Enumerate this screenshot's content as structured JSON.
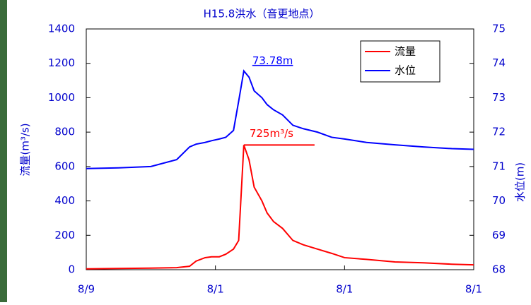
{
  "chart_data": {
    "type": "line",
    "title": "H15.8洪水（音更地点）",
    "ylabel": "流量(m³/s)",
    "y2label": "水位(m)",
    "x": [
      0,
      0.25,
      0.5,
      0.7,
      0.8,
      0.85,
      0.92,
      0.97,
      1.03,
      1.08,
      1.14,
      1.18,
      1.22,
      1.26,
      1.3,
      1.36,
      1.4,
      1.45,
      1.52,
      1.6,
      1.68,
      1.79,
      1.9,
      2.0,
      2.17,
      2.39,
      2.61,
      2.83,
      3.0
    ],
    "xlim": [
      0,
      3
    ],
    "xticks": [
      {
        "value": 0,
        "label": "8/9"
      },
      {
        "value": 1,
        "label": "8/1"
      },
      {
        "value": 2,
        "label": "8/1"
      },
      {
        "value": 3,
        "label": "8/1"
      }
    ],
    "ylim": [
      0,
      1400
    ],
    "yticks": [
      0,
      200,
      400,
      600,
      800,
      1000,
      1200,
      1400
    ],
    "y2lim": [
      68,
      75
    ],
    "y2ticks": [
      68,
      69,
      70,
      71,
      72,
      73,
      74,
      75
    ],
    "series": [
      {
        "name": "流量",
        "color": "#ff0000",
        "values": [
          5,
          7,
          9,
          12,
          20,
          50,
          70,
          75,
          75,
          90,
          120,
          170,
          725,
          640,
          480,
          400,
          330,
          280,
          240,
          170,
          145,
          120,
          95,
          70,
          60,
          45,
          40,
          32,
          28
        ]
      },
      {
        "name": "水位",
        "color": "#0000ff",
        "axis": "y2",
        "values": [
          70.94,
          70.96,
          71.0,
          71.2,
          71.57,
          71.65,
          71.7,
          71.75,
          71.8,
          71.85,
          72.05,
          72.9,
          73.78,
          73.6,
          73.2,
          73.0,
          72.8,
          72.65,
          72.5,
          72.2,
          72.1,
          72.0,
          71.85,
          71.8,
          71.7,
          71.63,
          71.57,
          71.52,
          71.5
        ]
      }
    ],
    "annotations": [
      {
        "text": "73.78m",
        "series": 1,
        "index": 12
      },
      {
        "text": "725m³/s",
        "series": 0,
        "index": 12
      }
    ],
    "legend": "top-right"
  }
}
